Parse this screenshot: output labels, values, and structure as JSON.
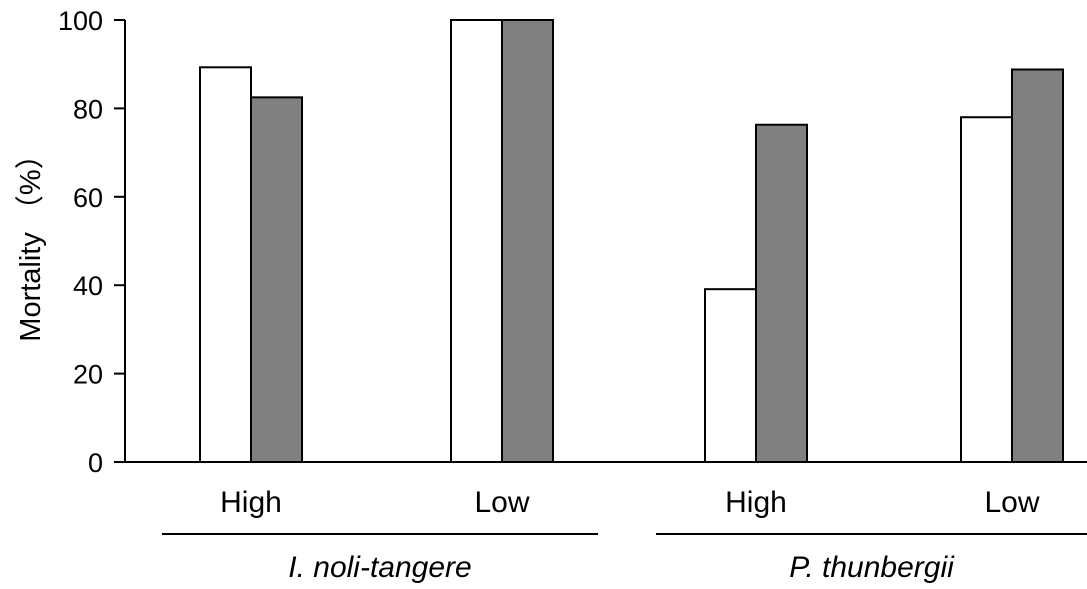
{
  "chart_data": {
    "type": "bar",
    "ylabel": "Mortality （%）",
    "ylim": [
      0,
      100
    ],
    "yticks": [
      0,
      20,
      40,
      60,
      80,
      100
    ],
    "grid": false,
    "legend": "none",
    "groups": [
      {
        "name": "I. noli-tangere",
        "categories": [
          "High",
          "Low"
        ],
        "series": [
          {
            "values": [
              89.3,
              100
            ],
            "color": "#ffffff"
          },
          {
            "values": [
              82.5,
              100
            ],
            "color": "#808080"
          }
        ]
      },
      {
        "name": "P. thunbergii",
        "categories": [
          "High",
          "Low"
        ],
        "series": [
          {
            "values": [
              39.1,
              78.0
            ],
            "color": "#ffffff"
          },
          {
            "values": [
              76.3,
              88.8
            ],
            "color": "#808080"
          }
        ]
      }
    ]
  }
}
